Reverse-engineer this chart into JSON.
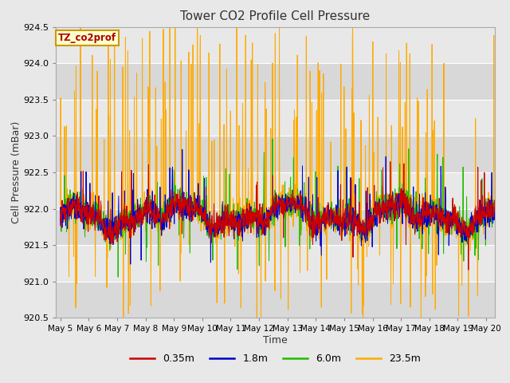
{
  "title": "Tower CO2 Profile Cell Pressure",
  "xlabel": "Time",
  "ylabel": "Cell Pressure (mBar)",
  "ylim": [
    920.5,
    924.5
  ],
  "xlim_start": 4.85,
  "xlim_end": 20.3,
  "fig_bg_color": "#e8e8e8",
  "plot_bg_color": "#e0e0e0",
  "band_colors": [
    "#d8d8d8",
    "#e8e8e8"
  ],
  "series": [
    {
      "label": "0.35m",
      "color": "#cc0000",
      "zorder": 4,
      "lw": 0.7
    },
    {
      "label": "1.8m",
      "color": "#0000cc",
      "zorder": 3,
      "lw": 0.7
    },
    {
      "label": "6.0m",
      "color": "#22bb00",
      "zorder": 2,
      "lw": 0.7
    },
    {
      "label": "23.5m",
      "color": "#ffaa00",
      "zorder": 1,
      "lw": 0.7
    }
  ],
  "annotation_text": "TZ_co2prof",
  "annotation_color": "#aa0000",
  "annotation_bg": "#ffffcc",
  "annotation_border": "#cc9900",
  "tick_dates": [
    "May 5",
    "May 6",
    "May 7",
    "May 8",
    "May 9",
    "May 10",
    "May 11",
    "May 12",
    "May 13",
    "May 14",
    "May 15",
    "May 16",
    "May 17",
    "May 18",
    "May 19",
    "May 20"
  ],
  "tick_positions": [
    5,
    6,
    7,
    8,
    9,
    10,
    11,
    12,
    13,
    14,
    15,
    16,
    17,
    18,
    19,
    20
  ],
  "yticks": [
    920.5,
    921.0,
    921.5,
    922.0,
    922.5,
    923.0,
    923.5,
    924.0,
    924.5
  ],
  "base_pressure": 921.9,
  "seed": 42
}
